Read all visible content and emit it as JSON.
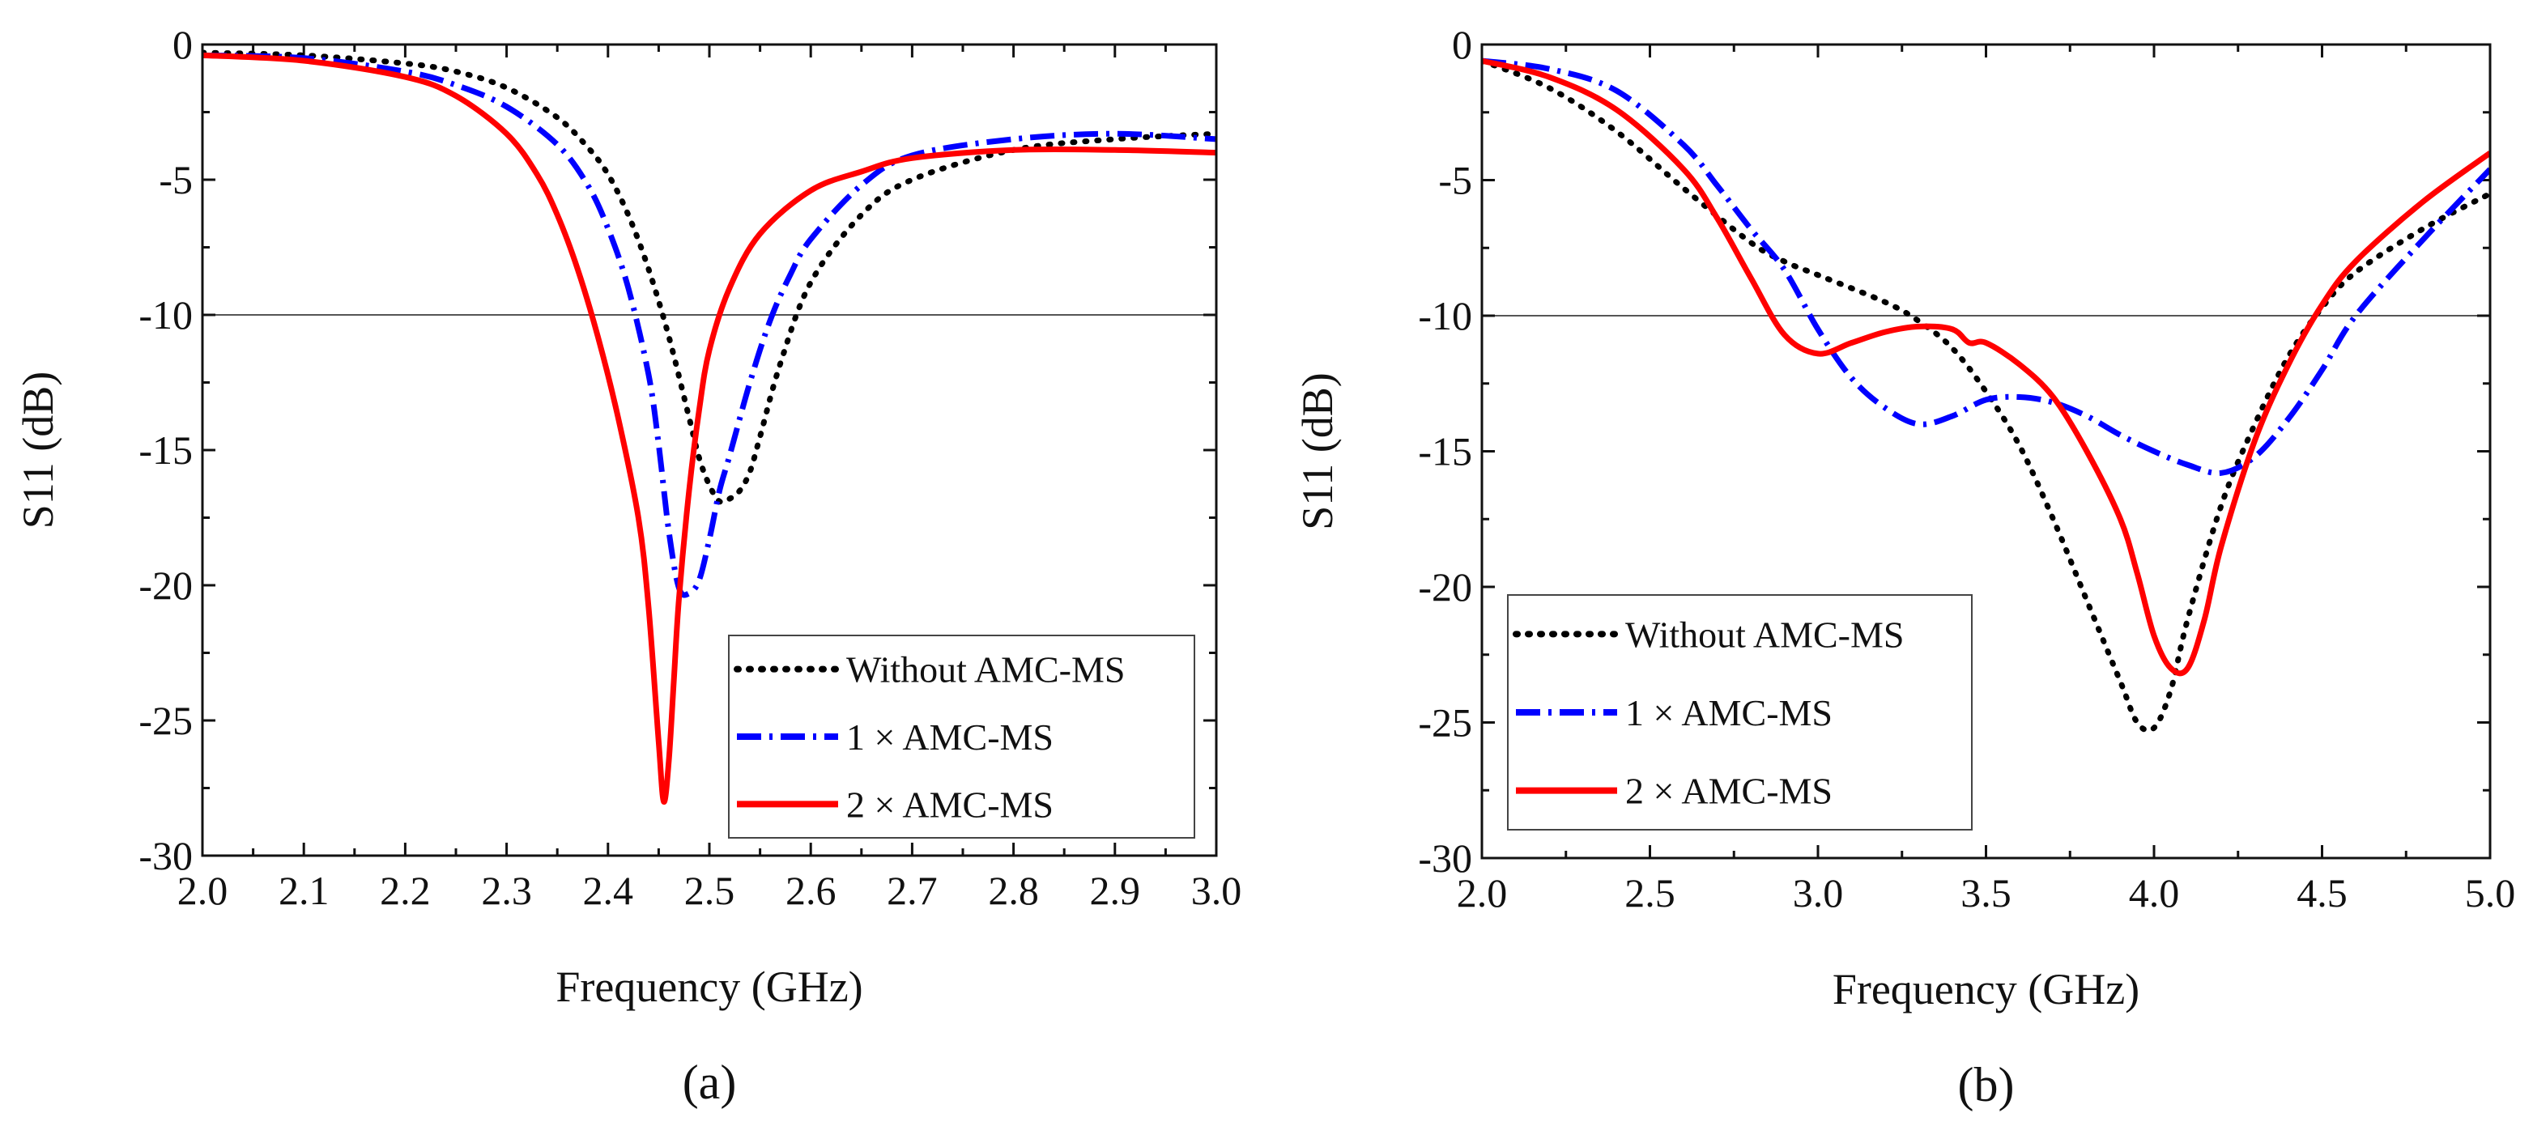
{
  "chart_data": [
    {
      "type": "line",
      "panel_label": "(a)",
      "xlabel": "Frequency (GHz)",
      "ylabel": "S11 (dB)",
      "xlim": [
        2.0,
        3.0
      ],
      "ylim": [
        -30,
        0
      ],
      "xticks": [
        2.0,
        2.1,
        2.2,
        2.3,
        2.4,
        2.5,
        2.6,
        2.7,
        2.8,
        2.9,
        3.0
      ],
      "xtick_labels": [
        "2.0",
        "2.1",
        "2.2",
        "2.3",
        "2.4",
        "2.5",
        "2.6",
        "2.7",
        "2.8",
        "2.9",
        "3.0"
      ],
      "yticks": [
        0,
        -5,
        -10,
        -15,
        -20,
        -25,
        -30
      ],
      "ytick_labels": [
        "0",
        "-5",
        "-10",
        "-15",
        "-20",
        "-25",
        "-30"
      ],
      "reference_line": -10,
      "legend_position": "bottom-right",
      "series": [
        {
          "name": "Without AMC-MS",
          "color": "#000000",
          "style": "dotted",
          "x": [
            2.0,
            2.1,
            2.2,
            2.25,
            2.3,
            2.35,
            2.38,
            2.4,
            2.42,
            2.44,
            2.46,
            2.48,
            2.49,
            2.5,
            2.51,
            2.52,
            2.53,
            2.54,
            2.55,
            2.57,
            2.6,
            2.65,
            2.7,
            2.8,
            2.9,
            3.0
          ],
          "y": [
            -0.3,
            -0.4,
            -0.7,
            -1.0,
            -1.6,
            -2.7,
            -3.8,
            -4.8,
            -6.3,
            -8.3,
            -10.8,
            -13.8,
            -15.3,
            -16.3,
            -16.9,
            -16.8,
            -16.5,
            -15.8,
            -14.5,
            -11.8,
            -8.8,
            -6.3,
            -5.0,
            -3.9,
            -3.5,
            -3.3
          ]
        },
        {
          "name": "1 × AMC-MS",
          "color": "#0000ff",
          "style": "dashdot",
          "x": [
            2.0,
            2.1,
            2.2,
            2.25,
            2.3,
            2.35,
            2.38,
            2.4,
            2.42,
            2.44,
            2.45,
            2.46,
            2.47,
            2.48,
            2.49,
            2.5,
            2.51,
            2.52,
            2.54,
            2.56,
            2.58,
            2.6,
            2.65,
            2.7,
            2.8,
            2.9,
            3.0
          ],
          "y": [
            -0.4,
            -0.5,
            -1.0,
            -1.5,
            -2.3,
            -3.7,
            -5.2,
            -6.8,
            -9.0,
            -12.2,
            -14.8,
            -18.0,
            -20.1,
            -20.3,
            -19.8,
            -18.3,
            -16.5,
            -15.2,
            -12.5,
            -10.2,
            -8.5,
            -7.2,
            -5.2,
            -4.1,
            -3.5,
            -3.3,
            -3.5
          ]
        },
        {
          "name": "2 × AMC-MS",
          "color": "#ff0000",
          "style": "solid",
          "x": [
            2.0,
            2.1,
            2.2,
            2.25,
            2.3,
            2.33,
            2.35,
            2.37,
            2.39,
            2.41,
            2.43,
            2.44,
            2.45,
            2.455,
            2.46,
            2.465,
            2.47,
            2.48,
            2.49,
            2.5,
            2.52,
            2.55,
            2.6,
            2.65,
            2.7,
            2.8,
            2.9,
            3.0
          ],
          "y": [
            -0.4,
            -0.6,
            -1.2,
            -1.9,
            -3.3,
            -4.8,
            -6.3,
            -8.3,
            -10.8,
            -13.8,
            -17.5,
            -20.8,
            -25.8,
            -28.0,
            -26.5,
            -23.5,
            -20.5,
            -16.5,
            -13.5,
            -11.3,
            -9.0,
            -7.0,
            -5.4,
            -4.7,
            -4.2,
            -3.9,
            -3.9,
            -4.0
          ]
        }
      ]
    },
    {
      "type": "line",
      "panel_label": "(b)",
      "xlabel": "Frequency (GHz)",
      "ylabel": "S11 (dB)",
      "xlim": [
        2.0,
        5.0
      ],
      "ylim": [
        -30,
        0
      ],
      "xticks": [
        2.0,
        2.5,
        3.0,
        3.5,
        4.0,
        4.5,
        5.0
      ],
      "xtick_labels": [
        "2.0",
        "2.5",
        "3.0",
        "3.5",
        "4.0",
        "4.5",
        "5.0"
      ],
      "yticks": [
        0,
        -5,
        -10,
        -15,
        -20,
        -25,
        -30
      ],
      "ytick_labels": [
        "0",
        "-5",
        "-10",
        "-15",
        "-20",
        "-25",
        "-30"
      ],
      "reference_line": -10,
      "legend_position": "bottom-left",
      "series": [
        {
          "name": "Without AMC-MS",
          "color": "#000000",
          "style": "dotted",
          "x": [
            2.0,
            2.2,
            2.4,
            2.6,
            2.8,
            2.9,
            3.0,
            3.2,
            3.3,
            3.4,
            3.5,
            3.6,
            3.7,
            3.8,
            3.9,
            3.95,
            4.0,
            4.05,
            4.1,
            4.2,
            4.3,
            4.4,
            4.5,
            4.6,
            4.8,
            5.0
          ],
          "y": [
            -0.6,
            -1.6,
            -3.2,
            -5.3,
            -7.3,
            -8.0,
            -8.5,
            -9.5,
            -10.2,
            -11.2,
            -12.8,
            -14.8,
            -17.5,
            -20.5,
            -23.5,
            -25.0,
            -25.2,
            -23.8,
            -21.2,
            -17.0,
            -14.0,
            -11.5,
            -9.7,
            -8.4,
            -6.8,
            -5.5
          ]
        },
        {
          "name": "1 × AMC-MS",
          "color": "#0000ff",
          "style": "dashdot",
          "x": [
            2.0,
            2.2,
            2.4,
            2.6,
            2.7,
            2.8,
            2.9,
            3.0,
            3.1,
            3.2,
            3.3,
            3.4,
            3.5,
            3.6,
            3.7,
            3.8,
            3.9,
            4.0,
            4.1,
            4.2,
            4.3,
            4.4,
            4.5,
            4.6,
            4.8,
            5.0
          ],
          "y": [
            -0.6,
            -0.9,
            -1.7,
            -3.7,
            -5.2,
            -6.8,
            -8.3,
            -10.5,
            -12.3,
            -13.4,
            -14.0,
            -13.7,
            -13.1,
            -13.0,
            -13.2,
            -13.7,
            -14.4,
            -15.0,
            -15.5,
            -15.8,
            -15.2,
            -13.8,
            -12.0,
            -10.0,
            -7.2,
            -4.6
          ]
        },
        {
          "name": "2 × AMC-MS",
          "color": "#ff0000",
          "style": "solid",
          "x": [
            2.0,
            2.2,
            2.4,
            2.6,
            2.7,
            2.8,
            2.9,
            3.0,
            3.1,
            3.2,
            3.3,
            3.4,
            3.45,
            3.5,
            3.6,
            3.7,
            3.8,
            3.9,
            3.95,
            4.0,
            4.05,
            4.1,
            4.15,
            4.2,
            4.3,
            4.4,
            4.5,
            4.6,
            4.8,
            5.0
          ],
          "y": [
            -0.6,
            -1.2,
            -2.4,
            -4.6,
            -6.4,
            -8.6,
            -10.7,
            -11.4,
            -11.0,
            -10.6,
            -10.4,
            -10.5,
            -11.0,
            -11.0,
            -11.8,
            -13.0,
            -15.0,
            -17.5,
            -19.5,
            -21.8,
            -23.0,
            -23.0,
            -21.2,
            -18.5,
            -14.6,
            -11.8,
            -9.6,
            -8.0,
            -5.8,
            -4.0
          ]
        }
      ]
    }
  ]
}
